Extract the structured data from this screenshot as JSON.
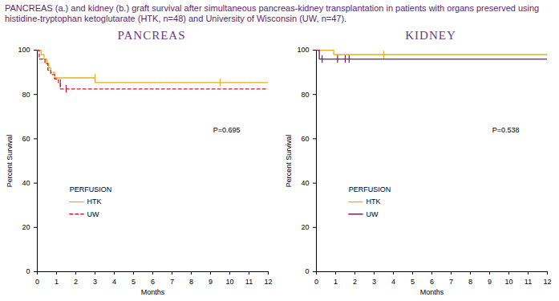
{
  "caption": "PANCREAS (a.) and kidney (b.) graft survival after simultaneous pancreas-kidney transplantation in patients with organs preserved using histidine-tryptophan ketoglutarate (HTK, n=48) and University of Wisconsin (UW, n=47).",
  "chart_data": [
    {
      "type": "line",
      "title": "PANCREAS",
      "xlabel": "Months",
      "ylabel": "Percent Survival",
      "xlim": [
        0,
        12
      ],
      "xticks": [
        0,
        1,
        2,
        3,
        4,
        5,
        6,
        7,
        8,
        9,
        10,
        11,
        12
      ],
      "ylim": [
        0,
        100
      ],
      "yticks": [
        0,
        20,
        40,
        60,
        80,
        100
      ],
      "annotation": "P=0.695",
      "legend": "lower left",
      "legend_title": "PERFUSION",
      "series": [
        {
          "name": "HTK",
          "color": "#e8b020",
          "line_style": "solid",
          "x": [
            0,
            0.2,
            0.35,
            0.5,
            0.6,
            0.7,
            0.9,
            3.0,
            12
          ],
          "values": [
            100,
            98,
            96,
            94,
            92,
            90,
            87.5,
            85.4,
            85.4
          ],
          "censored_x": [
            3.0,
            9.5,
            12
          ],
          "censored_values": [
            87.5,
            85.4,
            85.4
          ]
        },
        {
          "name": "UW",
          "color": "#c0202c",
          "line_style": "dashed",
          "x": [
            0,
            0.1,
            0.4,
            0.55,
            0.7,
            0.9,
            1.1,
            1.2,
            12
          ],
          "values": [
            100,
            96,
            94,
            91,
            89,
            87,
            85,
            82.5,
            82.5
          ],
          "censored_x": [
            1.2,
            1.5
          ],
          "censored_values": [
            85,
            82.5
          ]
        }
      ]
    },
    {
      "type": "line",
      "title": "KIDNEY",
      "xlabel": "Months",
      "ylabel": "Percent Survival",
      "xlim": [
        0,
        12
      ],
      "xticks": [
        0,
        1,
        2,
        3,
        4,
        5,
        6,
        7,
        8,
        9,
        10,
        11,
        12
      ],
      "ylim": [
        0,
        100
      ],
      "yticks": [
        0,
        20,
        40,
        60,
        80,
        100
      ],
      "annotation": "P=0.538",
      "legend": "lower left",
      "legend_title": "PERFUSION",
      "series": [
        {
          "name": "HTK",
          "color": "#e8b020",
          "line_style": "solid",
          "x": [
            0,
            0.9,
            12
          ],
          "values": [
            100,
            98,
            98
          ],
          "censored_x": [
            3.5,
            12
          ],
          "censored_values": [
            98,
            98
          ]
        },
        {
          "name": "UW",
          "color": "#7b1e5a",
          "line_style": "solid",
          "x": [
            0,
            0.15,
            12
          ],
          "values": [
            100,
            96,
            96
          ],
          "censored_x": [
            0.3,
            1.1,
            1.5,
            1.7
          ],
          "censored_values": [
            96,
            96,
            96,
            96
          ]
        }
      ]
    }
  ]
}
